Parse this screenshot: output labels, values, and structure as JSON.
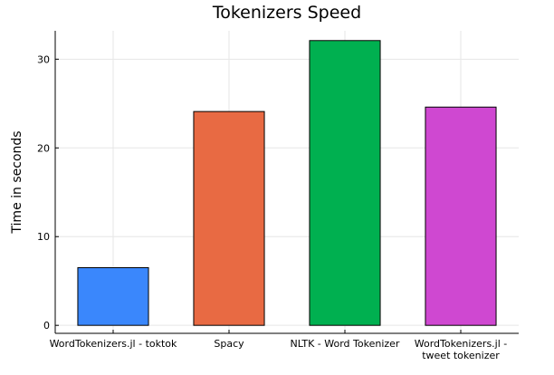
{
  "chart_data": {
    "type": "bar",
    "title": "Tokenizers Speed",
    "xlabel": "",
    "ylabel": "Time in seconds",
    "categories": [
      [
        "WordTokenizers.jl - toktok"
      ],
      [
        "Spacy"
      ],
      [
        "NLTK - Word Tokenizer"
      ],
      [
        "WordTokenizers.jl -",
        "tweet tokenizer"
      ]
    ],
    "values": [
      6.5,
      24.1,
      32.1,
      24.6
    ],
    "colors": [
      "#3a87fc",
      "#e86a43",
      "#00b050",
      "#cf48d1"
    ],
    "ylim": [
      -0.9,
      33.2
    ],
    "yticks": [
      0,
      10,
      20,
      30
    ],
    "grid": true,
    "legend": "none"
  }
}
